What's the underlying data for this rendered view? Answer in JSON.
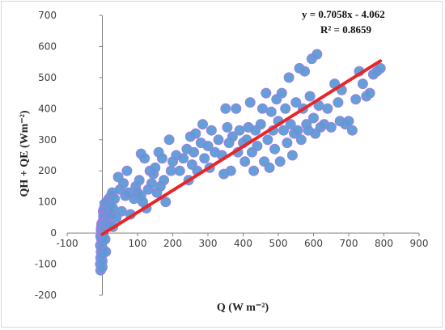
{
  "chart_data": {
    "type": "scatter",
    "title": "",
    "xlabel": "Q (W m⁻²)",
    "ylabel": "QH + QE (Wm⁻²)",
    "xlim": [
      -100,
      900
    ],
    "ylim": [
      -200,
      700
    ],
    "x_ticks": [
      -100,
      0,
      100,
      200,
      300,
      400,
      500,
      600,
      700,
      800,
      900
    ],
    "y_ticks": [
      -200,
      -100,
      0,
      100,
      200,
      300,
      400,
      500,
      600,
      700
    ],
    "x_tick_labels": [
      "-100",
      "0",
      "100",
      "200",
      "300",
      "400",
      "500",
      "600",
      "700",
      "800",
      "900"
    ],
    "y_tick_labels": [
      "-200",
      "-100",
      "0",
      "100",
      "200",
      "300",
      "400",
      "500",
      "600",
      "700"
    ],
    "grid": false,
    "legend": "none",
    "trendline": {
      "slope": 0.7058,
      "intercept": -4.062,
      "x_range": [
        0,
        790
      ],
      "equation_label": "y = 0.7058x - 4.062",
      "r2_label": "R² = 0.8659",
      "color": "#e8262a"
    },
    "marker_color": "#5b9bd5",
    "marker_edge_color": "#9f7fe0",
    "series": [
      {
        "values": [
          [
            -5,
            -120
          ],
          [
            -6,
            -100
          ],
          [
            -5,
            -80
          ],
          [
            -4,
            -60
          ],
          [
            -6,
            -40
          ],
          [
            -3,
            -20
          ],
          [
            -5,
            -10
          ],
          [
            -2,
            0
          ],
          [
            -4,
            10
          ],
          [
            -3,
            20
          ],
          [
            -2,
            30
          ],
          [
            0,
            -110
          ],
          [
            0,
            -90
          ],
          [
            0,
            -70
          ],
          [
            1,
            -50
          ],
          [
            0,
            -30
          ],
          [
            1,
            -15
          ],
          [
            2,
            5
          ],
          [
            1,
            25
          ],
          [
            2,
            40
          ],
          [
            3,
            55
          ],
          [
            2,
            70
          ],
          [
            3,
            -5
          ],
          [
            4,
            15
          ],
          [
            5,
            35
          ],
          [
            6,
            50
          ],
          [
            4,
            60
          ],
          [
            5,
            80
          ],
          [
            7,
            95
          ],
          [
            8,
            70
          ],
          [
            6,
            20
          ],
          [
            8,
            -20
          ],
          [
            10,
            -60
          ],
          [
            10,
            30
          ],
          [
            12,
            60
          ],
          [
            12,
            100
          ],
          [
            15,
            75
          ],
          [
            15,
            40
          ],
          [
            18,
            110
          ],
          [
            18,
            55
          ],
          [
            20,
            25
          ],
          [
            22,
            90
          ],
          [
            25,
            60
          ],
          [
            25,
            120
          ],
          [
            28,
            130
          ],
          [
            30,
            20
          ],
          [
            30,
            80
          ],
          [
            35,
            110
          ],
          [
            40,
            50
          ],
          [
            45,
            180
          ],
          [
            50,
            140
          ],
          [
            55,
            70
          ],
          [
            60,
            160
          ],
          [
            65,
            120
          ],
          [
            70,
            200
          ],
          [
            75,
            130
          ],
          [
            80,
            60
          ],
          [
            90,
            110
          ],
          [
            95,
            150
          ],
          [
            100,
            130
          ],
          [
            105,
            170
          ],
          [
            110,
            120
          ],
          [
            110,
            255
          ],
          [
            115,
            100
          ],
          [
            120,
            240
          ],
          [
            125,
            80
          ],
          [
            130,
            140
          ],
          [
            135,
            200
          ],
          [
            140,
            160
          ],
          [
            145,
            190
          ],
          [
            150,
            210
          ],
          [
            155,
            130
          ],
          [
            160,
            260
          ],
          [
            165,
            150
          ],
          [
            170,
            240
          ],
          [
            175,
            170
          ],
          [
            180,
            100
          ],
          [
            190,
            300
          ],
          [
            195,
            200
          ],
          [
            200,
            230
          ],
          [
            210,
            250
          ],
          [
            220,
            200
          ],
          [
            230,
            240
          ],
          [
            240,
            270
          ],
          [
            245,
            170
          ],
          [
            250,
            310
          ],
          [
            255,
            220
          ],
          [
            260,
            260
          ],
          [
            265,
            320
          ],
          [
            270,
            200
          ],
          [
            280,
            290
          ],
          [
            285,
            350
          ],
          [
            290,
            240
          ],
          [
            300,
            280
          ],
          [
            305,
            210
          ],
          [
            310,
            330
          ],
          [
            320,
            260
          ],
          [
            330,
            300
          ],
          [
            340,
            250
          ],
          [
            345,
            190
          ],
          [
            350,
            400
          ],
          [
            355,
            340
          ],
          [
            360,
            290
          ],
          [
            365,
            200
          ],
          [
            370,
            310
          ],
          [
            380,
            400
          ],
          [
            385,
            260
          ],
          [
            390,
            330
          ],
          [
            400,
            290
          ],
          [
            405,
            230
          ],
          [
            410,
            300
          ],
          [
            415,
            340
          ],
          [
            420,
            420
          ],
          [
            425,
            260
          ],
          [
            430,
            200
          ],
          [
            435,
            330
          ],
          [
            440,
            280
          ],
          [
            450,
            350
          ],
          [
            455,
            400
          ],
          [
            460,
            230
          ],
          [
            465,
            450
          ],
          [
            470,
            300
          ],
          [
            475,
            210
          ],
          [
            480,
            390
          ],
          [
            485,
            330
          ],
          [
            490,
            270
          ],
          [
            495,
            430
          ],
          [
            500,
            360
          ],
          [
            505,
            230
          ],
          [
            510,
            450
          ],
          [
            515,
            330
          ],
          [
            520,
            400
          ],
          [
            525,
            290
          ],
          [
            530,
            500
          ],
          [
            535,
            350
          ],
          [
            540,
            250
          ],
          [
            545,
            320
          ],
          [
            550,
            420
          ],
          [
            555,
            330
          ],
          [
            560,
            530
          ],
          [
            565,
            300
          ],
          [
            570,
            400
          ],
          [
            575,
            520
          ],
          [
            580,
            350
          ],
          [
            585,
            330
          ],
          [
            590,
            440
          ],
          [
            595,
            560
          ],
          [
            600,
            370
          ],
          [
            605,
            320
          ],
          [
            610,
            575
          ],
          [
            615,
            410
          ],
          [
            620,
            340
          ],
          [
            630,
            350
          ],
          [
            640,
            400
          ],
          [
            650,
            340
          ],
          [
            660,
            480
          ],
          [
            670,
            420
          ],
          [
            675,
            360
          ],
          [
            680,
            460
          ],
          [
            690,
            350
          ],
          [
            700,
            360
          ],
          [
            710,
            330
          ],
          [
            720,
            430
          ],
          [
            730,
            520
          ],
          [
            740,
            480
          ],
          [
            750,
            440
          ],
          [
            760,
            450
          ],
          [
            770,
            510
          ],
          [
            780,
            520
          ],
          [
            790,
            530
          ]
        ]
      }
    ]
  }
}
